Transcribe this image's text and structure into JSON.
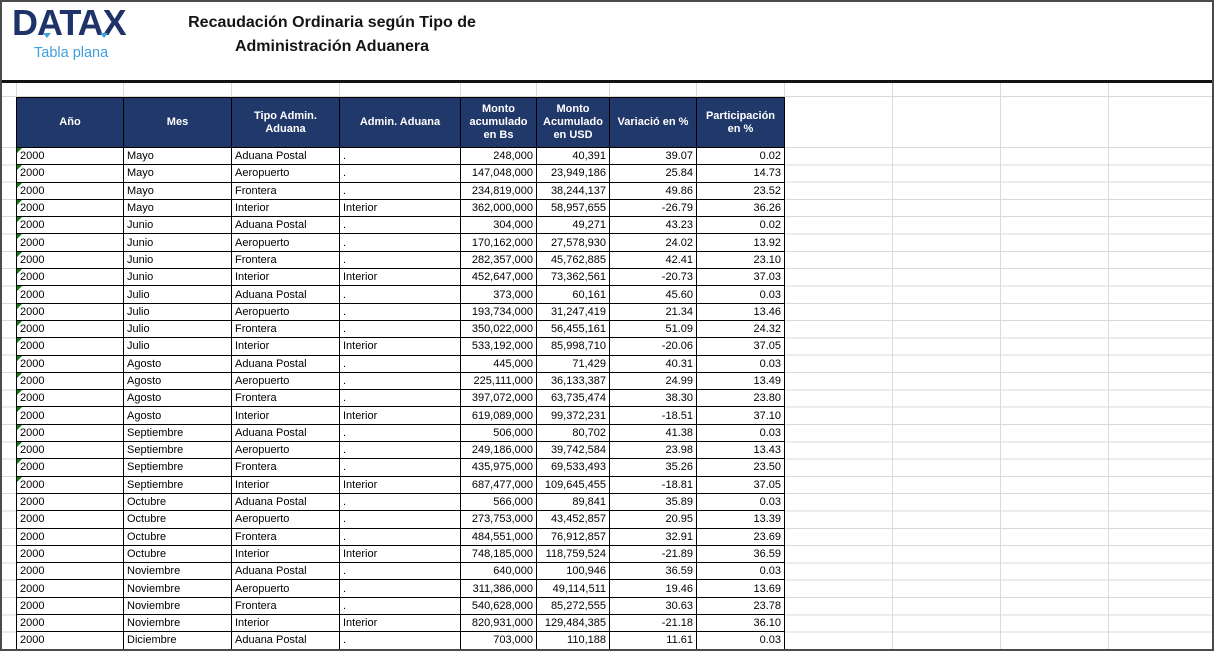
{
  "brand": {
    "name": "DATAX",
    "tagline": "Tabla plana"
  },
  "title": {
    "line1": "Recaudación Ordinaria según Tipo de",
    "line2": "Administración Aduanera"
  },
  "table": {
    "columns": [
      {
        "label": "Año",
        "align": "left"
      },
      {
        "label": "Mes",
        "align": "left"
      },
      {
        "label": "Tipo Admin. Aduana",
        "align": "left"
      },
      {
        "label": "Admin. Aduana",
        "align": "left"
      },
      {
        "label": "Monto acumulado en Bs",
        "align": "right"
      },
      {
        "label": "Monto Acumulado en USD",
        "align": "right"
      },
      {
        "label": "Variació en %",
        "align": "right"
      },
      {
        "label": "Participación en %",
        "align": "right"
      }
    ],
    "rows": [
      [
        "2000",
        "Mayo",
        "Aduana Postal",
        ".",
        "248,000",
        "40,391",
        "39.07",
        "0.02",
        1
      ],
      [
        "2000",
        "Mayo",
        "Aeropuerto",
        ".",
        "147,048,000",
        "23,949,186",
        "25.84",
        "14.73",
        1
      ],
      [
        "2000",
        "Mayo",
        "Frontera",
        ".",
        "234,819,000",
        "38,244,137",
        "49.86",
        "23.52",
        1
      ],
      [
        "2000",
        "Mayo",
        "Interior",
        "Interior",
        "362,000,000",
        "58,957,655",
        "-26.79",
        "36.26",
        1
      ],
      [
        "2000",
        "Junio",
        "Aduana Postal",
        ".",
        "304,000",
        "49,271",
        "43.23",
        "0.02",
        1
      ],
      [
        "2000",
        "Junio",
        "Aeropuerto",
        ".",
        "170,162,000",
        "27,578,930",
        "24.02",
        "13.92",
        1
      ],
      [
        "2000",
        "Junio",
        "Frontera",
        ".",
        "282,357,000",
        "45,762,885",
        "42.41",
        "23.10",
        1
      ],
      [
        "2000",
        "Junio",
        "Interior",
        "Interior",
        "452,647,000",
        "73,362,561",
        "-20.73",
        "37.03",
        1
      ],
      [
        "2000",
        "Julio",
        "Aduana Postal",
        ".",
        "373,000",
        "60,161",
        "45.60",
        "0.03",
        1
      ],
      [
        "2000",
        "Julio",
        "Aeropuerto",
        ".",
        "193,734,000",
        "31,247,419",
        "21.34",
        "13.46",
        1
      ],
      [
        "2000",
        "Julio",
        "Frontera",
        ".",
        "350,022,000",
        "56,455,161",
        "51.09",
        "24.32",
        1
      ],
      [
        "2000",
        "Julio",
        "Interior",
        "Interior",
        "533,192,000",
        "85,998,710",
        "-20.06",
        "37.05",
        1
      ],
      [
        "2000",
        "Agosto",
        "Aduana Postal",
        ".",
        "445,000",
        "71,429",
        "40.31",
        "0.03",
        1
      ],
      [
        "2000",
        "Agosto",
        "Aeropuerto",
        ".",
        "225,111,000",
        "36,133,387",
        "24.99",
        "13.49",
        1
      ],
      [
        "2000",
        "Agosto",
        "Frontera",
        ".",
        "397,072,000",
        "63,735,474",
        "38.30",
        "23.80",
        1
      ],
      [
        "2000",
        "Agosto",
        "Interior",
        "Interior",
        "619,089,000",
        "99,372,231",
        "-18.51",
        "37.10",
        1
      ],
      [
        "2000",
        "Septiembre",
        "Aduana Postal",
        ".",
        "506,000",
        "80,702",
        "41.38",
        "0.03",
        1
      ],
      [
        "2000",
        "Septiembre",
        "Aeropuerto",
        ".",
        "249,186,000",
        "39,742,584",
        "23.98",
        "13.43",
        1
      ],
      [
        "2000",
        "Septiembre",
        "Frontera",
        ".",
        "435,975,000",
        "69,533,493",
        "35.26",
        "23.50",
        1
      ],
      [
        "2000",
        "Septiembre",
        "Interior",
        "Interior",
        "687,477,000",
        "109,645,455",
        "-18.81",
        "37.05",
        1
      ],
      [
        "2000",
        "Octubre",
        "Aduana Postal",
        ".",
        "566,000",
        "89,841",
        "35.89",
        "0.03",
        0
      ],
      [
        "2000",
        "Octubre",
        "Aeropuerto",
        ".",
        "273,753,000",
        "43,452,857",
        "20.95",
        "13.39",
        0
      ],
      [
        "2000",
        "Octubre",
        "Frontera",
        ".",
        "484,551,000",
        "76,912,857",
        "32.91",
        "23.69",
        0
      ],
      [
        "2000",
        "Octubre",
        "Interior",
        "Interior",
        "748,185,000",
        "118,759,524",
        "-21.89",
        "36.59",
        0
      ],
      [
        "2000",
        "Noviembre",
        "Aduana Postal",
        ".",
        "640,000",
        "100,946",
        "36.59",
        "0.03",
        0
      ],
      [
        "2000",
        "Noviembre",
        "Aeropuerto",
        ".",
        "311,386,000",
        "49,114,511",
        "19.46",
        "13.69",
        0
      ],
      [
        "2000",
        "Noviembre",
        "Frontera",
        ".",
        "540,628,000",
        "85,272,555",
        "30.63",
        "23.78",
        0
      ],
      [
        "2000",
        "Noviembre",
        "Interior",
        "Interior",
        "820,931,000",
        "129,484,385",
        "-21.18",
        "36.10",
        0
      ],
      [
        "2000",
        "Diciembre",
        "Aduana Postal",
        ".",
        "703,000",
        "110,188",
        "11.61",
        "0.03",
        0
      ]
    ]
  },
  "icons": {
    "flag": "number-stored-as-text-indicator"
  },
  "colors": {
    "header_bg": "#21386b",
    "logo_text": "#1e3468",
    "tagline_text": "#3f9fdb",
    "flag_green": "#0e7d0e",
    "gridline": "#d9d9d9"
  }
}
